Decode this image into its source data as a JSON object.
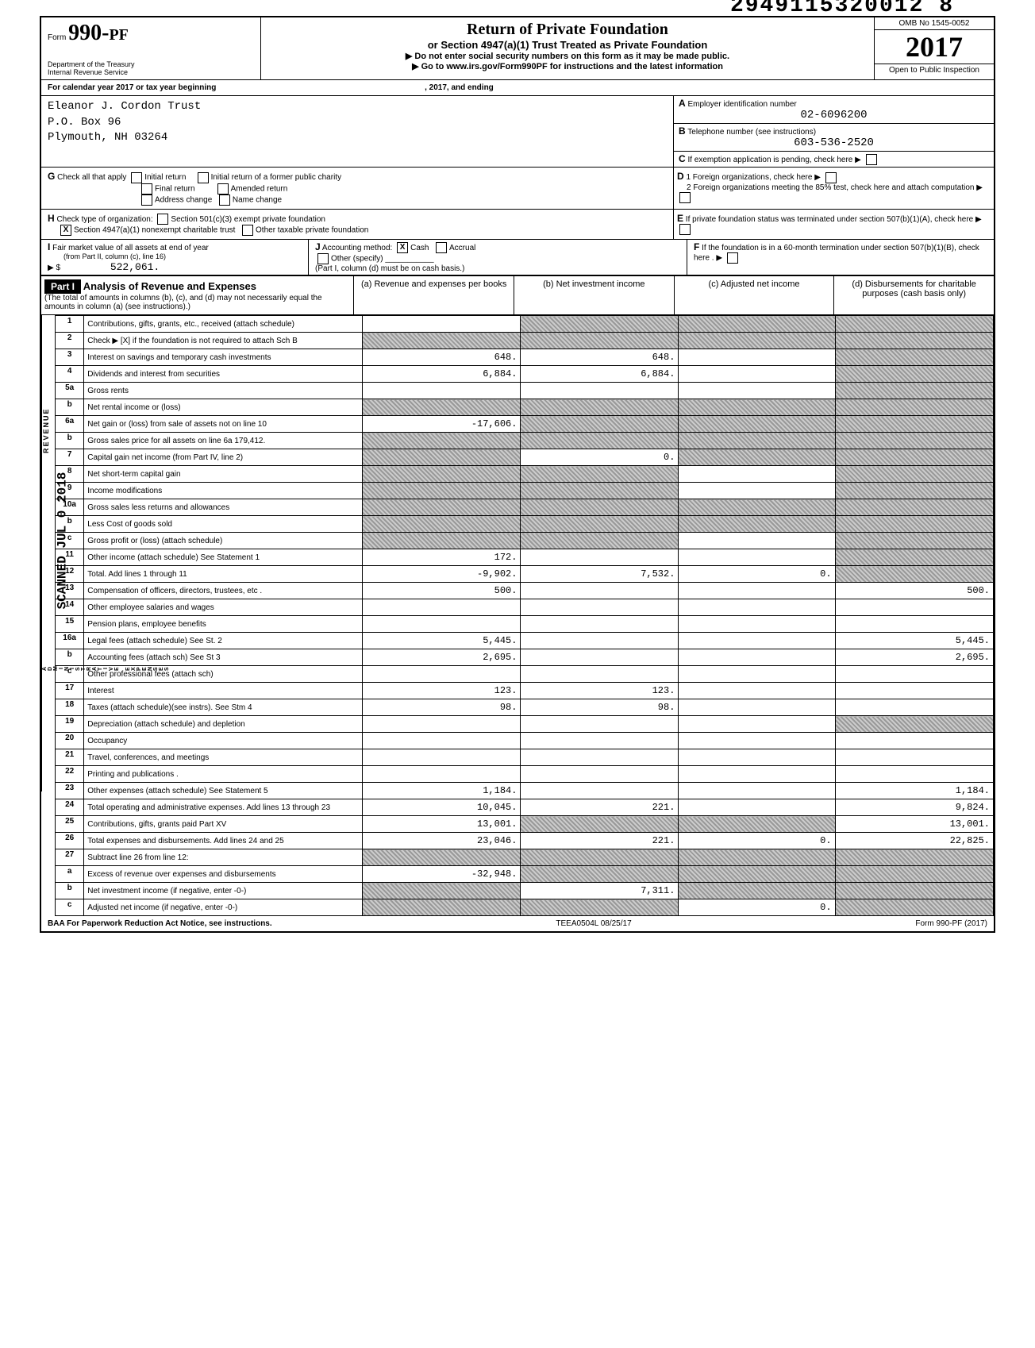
{
  "header_stamp": "2949115320012 8",
  "form_number": "990-PF",
  "form_prefix": "Form",
  "dept": "Department of the Treasury",
  "irs": "Internal Revenue Service",
  "title_main": "Return of Private Foundation",
  "title_sub": "or Section 4947(a)(1) Trust Treated as Private Foundation",
  "title_note1": "▶ Do not enter social security numbers on this form as it may be made public.",
  "title_note2": "▶ Go to www.irs.gov/Form990PF for instructions and the latest information",
  "omb": "OMB No 1545-0052",
  "year": "2017",
  "open_inspection": "Open to Public Inspection",
  "calendar_year": "For calendar year 2017 or tax year beginning",
  "ending_label": ", 2017, and ending",
  "org": {
    "name": "Eleanor J. Cordon Trust",
    "address": "P.O. Box 96",
    "city": "Plymouth, NH 03264"
  },
  "ein_label": "Employer identification number",
  "ein": "02-6096200",
  "phone_label": "Telephone number (see instructions)",
  "phone": "603-536-2520",
  "c_label": "If exemption application is pending, check here",
  "g_label": "Check all that apply",
  "g_opts": {
    "initial": "Initial return",
    "initial_former": "Initial return of a former public charity",
    "final": "Final return",
    "amended": "Amended return",
    "address": "Address change",
    "name_change": "Name change"
  },
  "d1_label": "1 Foreign organizations, check here",
  "d2_label": "2 Foreign organizations meeting the 85% test, check here and attach computation",
  "h_label": "Check type of organization:",
  "h_opts": {
    "501c3": "Section 501(c)(3) exempt private foundation",
    "4947": "Section 4947(a)(1) nonexempt charitable trust",
    "other": "Other taxable private foundation"
  },
  "e_label": "If private foundation status was terminated under section 507(b)(1)(A), check here",
  "i_label": "Fair market value of all assets at end of year",
  "i_sub": "(from Part II, column (c), line 16)",
  "i_value": "522,061.",
  "j_label": "Accounting method:",
  "j_cash": "Cash",
  "j_accrual": "Accrual",
  "j_other": "Other (specify)",
  "j_note": "(Part I, column (d) must be on cash basis.)",
  "f_label": "If the foundation is in a 60-month termination under section 507(b)(1)(B), check here .",
  "part1_label": "Part I",
  "part1_title": "Analysis of Revenue and Expenses",
  "part1_sub": "(The total of amounts in columns (b), (c), and (d) may not necessarily equal the amounts in column (a) (see instructions).)",
  "col_a": "(a) Revenue and expenses per books",
  "col_b": "(b) Net investment income",
  "col_c": "(c) Adjusted net income",
  "col_d": "(d) Disbursements for charitable purposes (cash basis only)",
  "side_revenue": "REVENUE",
  "side_operating": "OPERATING AND ADMINISTRATIVE EXPENSES",
  "side_scanned": "SCANNED JUL 0 2018",
  "lines": [
    {
      "n": "1",
      "desc": "Contributions, gifts, grants, etc., received (attach schedule)",
      "a": "",
      "b_shade": true,
      "c_shade": true,
      "d_shade": true
    },
    {
      "n": "2",
      "desc": "Check ▶ [X] if the foundation is not required to attach Sch B",
      "a_shade": true,
      "b_shade": true,
      "c_shade": true,
      "d_shade": true
    },
    {
      "n": "3",
      "desc": "Interest on savings and temporary cash investments",
      "a": "648.",
      "b": "648.",
      "c": "",
      "d_shade": true
    },
    {
      "n": "4",
      "desc": "Dividends and interest from securities",
      "a": "6,884.",
      "b": "6,884.",
      "c": "",
      "d_shade": true
    },
    {
      "n": "5a",
      "desc": "Gross rents",
      "a": "",
      "b": "",
      "c": "",
      "d_shade": true
    },
    {
      "n": "b",
      "desc": "Net rental income or (loss)",
      "a_shade": true,
      "b_shade": true,
      "c_shade": true,
      "d_shade": true
    },
    {
      "n": "6a",
      "desc": "Net gain or (loss) from sale of assets not on line 10",
      "a": "-17,606.",
      "b_shade": true,
      "c_shade": true,
      "d_shade": true
    },
    {
      "n": "b",
      "desc": "Gross sales price for all assets on line 6a          179,412.",
      "a_shade": true,
      "b_shade": true,
      "c_shade": true,
      "d_shade": true
    },
    {
      "n": "7",
      "desc": "Capital gain net income (from Part IV, line 2)",
      "a_shade": true,
      "b": "0.",
      "c_shade": true,
      "d_shade": true
    },
    {
      "n": "8",
      "desc": "Net short-term capital gain",
      "a_shade": true,
      "b_shade": true,
      "c": "",
      "d_shade": true
    },
    {
      "n": "9",
      "desc": "Income modifications",
      "a_shade": true,
      "b_shade": true,
      "c": "",
      "d_shade": true
    },
    {
      "n": "10a",
      "desc": "Gross sales less returns and allowances",
      "a_shade": true,
      "b_shade": true,
      "c_shade": true,
      "d_shade": true
    },
    {
      "n": "b",
      "desc": "Less Cost of goods sold",
      "a_shade": true,
      "b_shade": true,
      "c_shade": true,
      "d_shade": true
    },
    {
      "n": "c",
      "desc": "Gross profit or (loss) (attach schedule)",
      "a_shade": true,
      "b_shade": true,
      "c": "",
      "d_shade": true
    },
    {
      "n": "11",
      "desc": "Other income (attach schedule)            See Statement 1",
      "a": "172.",
      "b": "",
      "c": "",
      "d_shade": true
    },
    {
      "n": "12",
      "desc": "Total. Add lines 1 through 11",
      "a": "-9,902.",
      "b": "7,532.",
      "c": "0.",
      "d_shade": true
    },
    {
      "n": "13",
      "desc": "Compensation of officers, directors, trustees, etc .",
      "a": "500.",
      "b": "",
      "c": "",
      "d": "500."
    },
    {
      "n": "14",
      "desc": "Other employee salaries and wages",
      "a": "",
      "b": "",
      "c": "",
      "d": ""
    },
    {
      "n": "15",
      "desc": "Pension plans, employee benefits",
      "a": "",
      "b": "",
      "c": "",
      "d": ""
    },
    {
      "n": "16a",
      "desc": "Legal fees (attach schedule)        See St. 2",
      "a": "5,445.",
      "b": "",
      "c": "",
      "d": "5,445."
    },
    {
      "n": "b",
      "desc": "Accounting fees (attach sch)        See St 3",
      "a": "2,695.",
      "b": "",
      "c": "",
      "d": "2,695."
    },
    {
      "n": "c",
      "desc": "Other professional fees (attach sch)",
      "a": "",
      "b": "",
      "c": "",
      "d": ""
    },
    {
      "n": "17",
      "desc": "Interest",
      "a": "123.",
      "b": "123.",
      "c": "",
      "d": ""
    },
    {
      "n": "18",
      "desc": "Taxes (attach schedule)(see instrs).   See Stm 4",
      "a": "98.",
      "b": "98.",
      "c": "",
      "d": ""
    },
    {
      "n": "19",
      "desc": "Depreciation (attach schedule) and depletion",
      "a": "",
      "b": "",
      "c": "",
      "d_shade": true
    },
    {
      "n": "20",
      "desc": "Occupancy",
      "a": "",
      "b": "",
      "c": "",
      "d": ""
    },
    {
      "n": "21",
      "desc": "Travel, conferences, and meetings",
      "a": "",
      "b": "",
      "c": "",
      "d": ""
    },
    {
      "n": "22",
      "desc": "Printing and publications .",
      "a": "",
      "b": "",
      "c": "",
      "d": ""
    },
    {
      "n": "23",
      "desc": "Other expenses (attach schedule)            See Statement 5",
      "a": "1,184.",
      "b": "",
      "c": "",
      "d": "1,184."
    },
    {
      "n": "24",
      "desc": "Total operating and administrative expenses. Add lines 13 through 23",
      "a": "10,045.",
      "b": "221.",
      "c": "",
      "d": "9,824."
    },
    {
      "n": "25",
      "desc": "Contributions, gifts, grants paid       Part XV",
      "a": "13,001.",
      "b_shade": true,
      "c_shade": true,
      "d": "13,001."
    },
    {
      "n": "26",
      "desc": "Total expenses and disbursements. Add lines 24 and 25",
      "a": "23,046.",
      "b": "221.",
      "c": "0.",
      "d": "22,825."
    },
    {
      "n": "27",
      "desc": "Subtract line 26 from line 12:",
      "a_shade": true,
      "b_shade": true,
      "c_shade": true,
      "d_shade": true
    },
    {
      "n": "a",
      "desc": "Excess of revenue over expenses and disbursements",
      "a": "-32,948.",
      "b_shade": true,
      "c_shade": true,
      "d_shade": true
    },
    {
      "n": "b",
      "desc": "Net investment income (if negative, enter -0-)",
      "a_shade": true,
      "b": "7,311.",
      "c_shade": true,
      "d_shade": true
    },
    {
      "n": "c",
      "desc": "Adjusted net income (if negative, enter -0-)",
      "a_shade": true,
      "b_shade": true,
      "c": "0.",
      "d_shade": true
    }
  ],
  "footer_left": "BAA For Paperwork Reduction Act Notice, see instructions.",
  "footer_mid": "TEEA0504L 08/25/17",
  "footer_right": "Form 990-PF (2017)",
  "letters": {
    "A": "A",
    "B": "B",
    "C": "C",
    "D": "D",
    "E": "E",
    "F": "F",
    "G": "G",
    "H": "H",
    "I": "I",
    "J": "J"
  }
}
